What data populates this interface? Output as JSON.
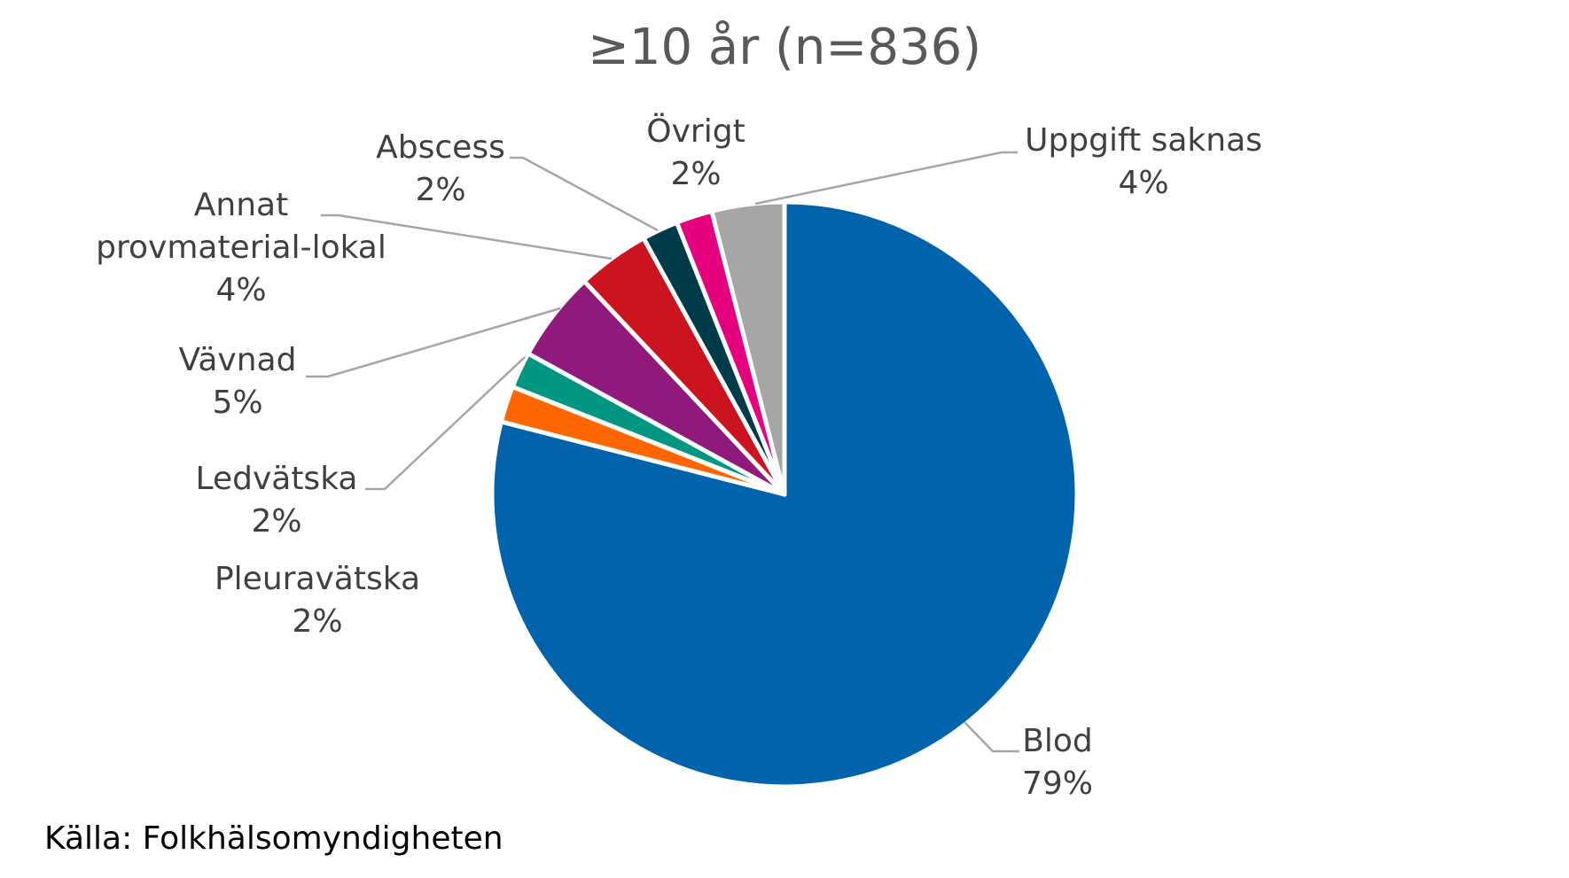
{
  "chart_data": {
    "type": "pie",
    "title": "≥10 år (n=836)",
    "slices": [
      {
        "name": "Blod",
        "value": 79,
        "label": "79%",
        "color": "#0063ac"
      },
      {
        "name": "Pleuravätska",
        "value": 2,
        "label": "2%",
        "color": "#ff6600"
      },
      {
        "name": "Ledvätska",
        "value": 2,
        "label": "2%",
        "color": "#009682"
      },
      {
        "name": "Vävnad",
        "value": 5,
        "label": "5%",
        "color": "#8f1a7b"
      },
      {
        "name": "Annat provmaterial-lokal",
        "value": 4,
        "label": "4%",
        "color": "#cc1421"
      },
      {
        "name": "Abscess",
        "value": 2,
        "label": "2%",
        "color": "#003b49"
      },
      {
        "name": "Övrigt",
        "value": 2,
        "label": "2%",
        "color": "#e6007e"
      },
      {
        "name": "Uppgift saknas",
        "value": 4,
        "label": "4%",
        "color": "#a6a6a6"
      }
    ]
  },
  "source": "Källa: Folkhälsomyndigheten"
}
